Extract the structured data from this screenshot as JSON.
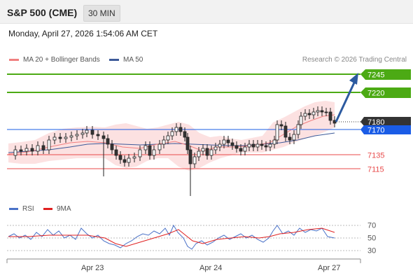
{
  "header": {
    "title": "S&P 500 (CME)",
    "interval": "30 MIN"
  },
  "datetime": "Monday, April 27, 2026 1:54:06 AM CET",
  "legend": {
    "ma20": {
      "label": "MA 20 + Bollinger Bands",
      "color": "#f08080"
    },
    "ma50": {
      "label": "MA 50",
      "color": "#3d5a99"
    }
  },
  "copyright": "Research © 2026 Trading Central",
  "levels": {
    "r2": "7245",
    "r1": "7220",
    "last": "7180",
    "pivot": "7170",
    "s1": "7135",
    "s2": "7115"
  },
  "rsi_legend": {
    "rsi": {
      "label": "RSI",
      "color": "#4a72c8"
    },
    "ma9": {
      "label": "9MA",
      "color": "#e02020"
    }
  },
  "rsi_ticks": [
    "70",
    "50",
    "30"
  ],
  "x_axis": [
    "Apr 23",
    "Apr 24",
    "Apr 27"
  ],
  "colors": {
    "resistance": "#4caa14",
    "support": "#e84a4a",
    "pivot": "#1a5ce6",
    "last": "#333333",
    "arrow": "#2c5aa0",
    "band": "#fbdcdc"
  }
}
